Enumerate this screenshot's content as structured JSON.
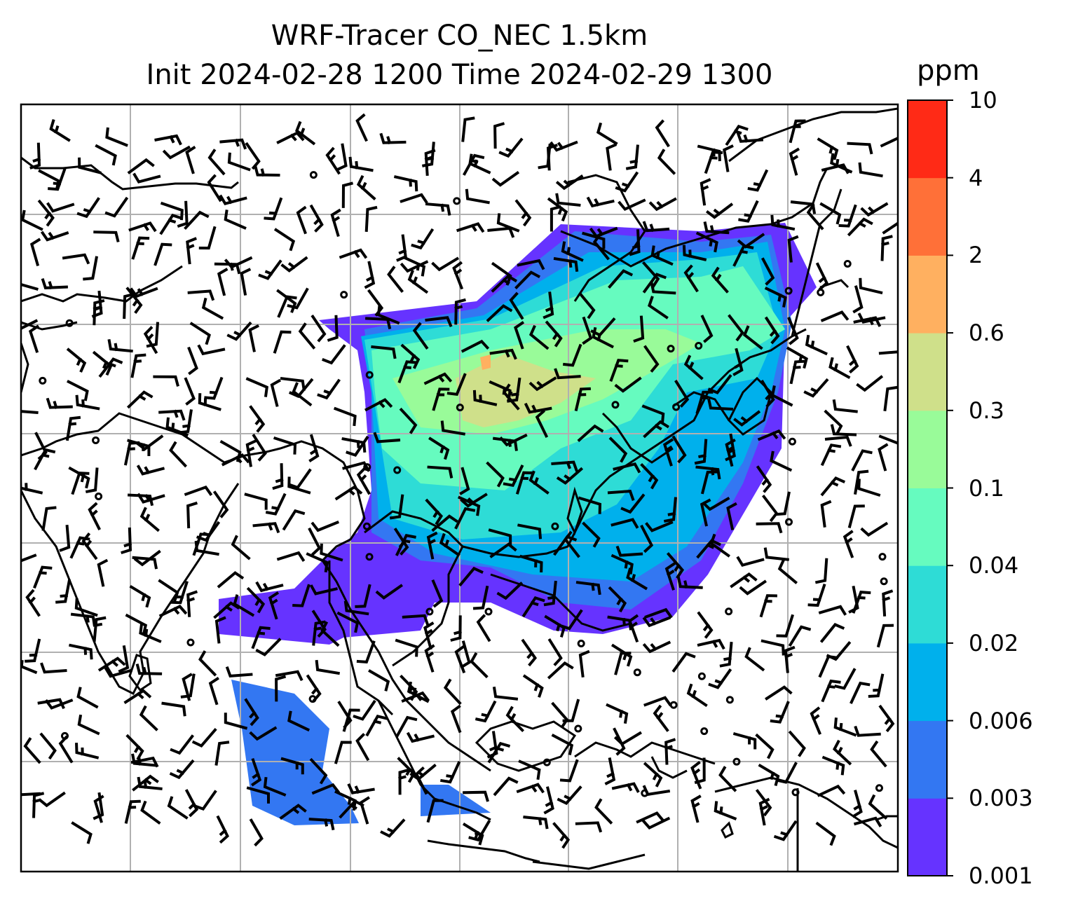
{
  "title": {
    "line1": "WRF-Tracer CO_NEC 1.5km",
    "line2": "Init 2024-02-28 1200 Time 2024-02-29 1300"
  },
  "colorbar": {
    "unit": "ppm",
    "levels": [
      "0.001",
      "0.003",
      "0.006",
      "0.02",
      "0.04",
      "0.1",
      "0.3",
      "0.6",
      "2",
      "4",
      "10"
    ],
    "colors": [
      "#6633ff",
      "#3377f2",
      "#00b0ec",
      "#2edcd6",
      "#66fbbf",
      "#99fb99",
      "#cfe08a",
      "#ffb060",
      "#ff7038",
      "#ff2a16"
    ]
  },
  "map": {
    "overlay": "wind barbs",
    "gridlines": true,
    "coastline_color": "#000000",
    "gridline_color": "#b0b0b0"
  }
}
